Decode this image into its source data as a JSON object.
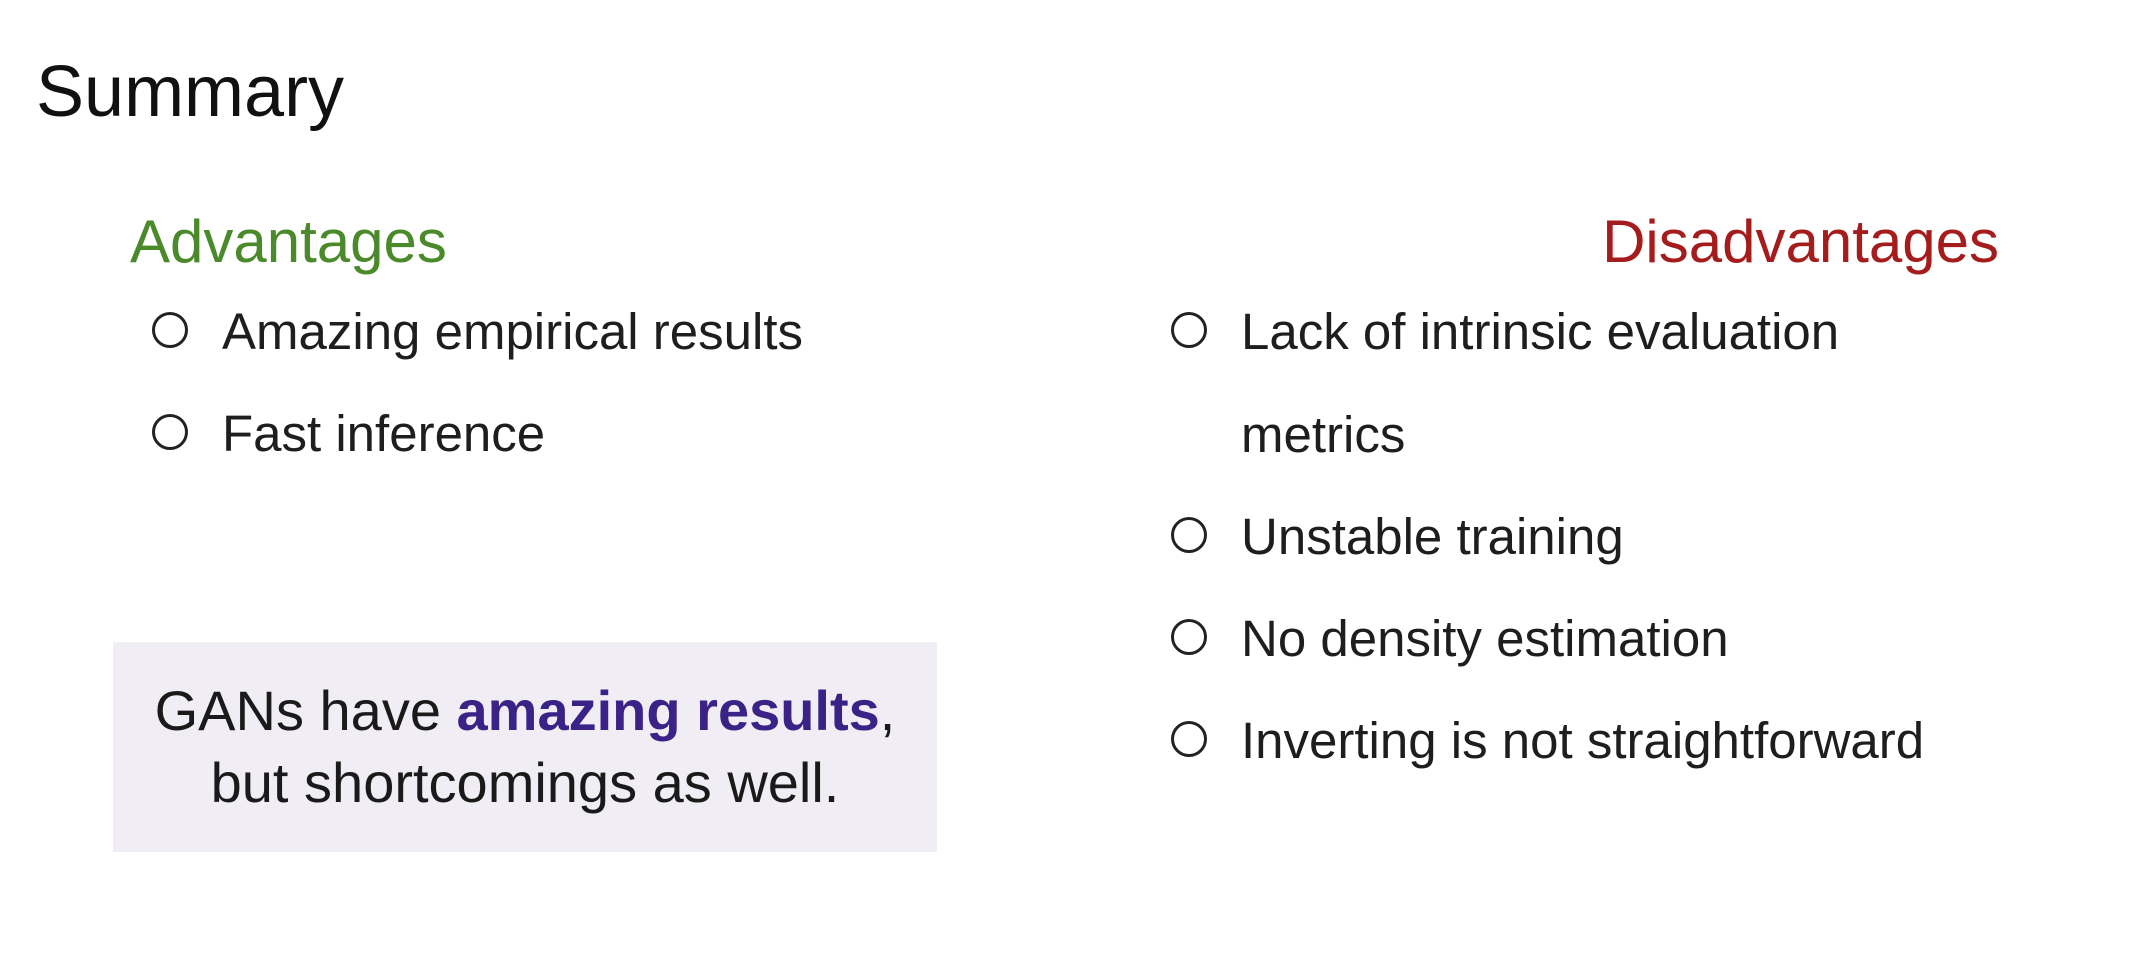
{
  "slide": {
    "title": "Summary"
  },
  "advantages": {
    "heading": "Advantages",
    "heading_color": "#4b8a2a",
    "items": [
      "Amazing empirical results",
      "Fast inference"
    ]
  },
  "disadvantages": {
    "heading": "Disadvantages",
    "heading_color": "#a51c1c",
    "items": [
      "Lack of intrinsic evaluation metrics",
      "Unstable training",
      "No density estimation",
      "Inverting is not straightforward"
    ]
  },
  "callout": {
    "prefix": "GANs have ",
    "highlight": "amazing results",
    "suffix": ", but shortcomings as well.",
    "highlight_color": "#3a2287",
    "background": "#f0eef4"
  }
}
